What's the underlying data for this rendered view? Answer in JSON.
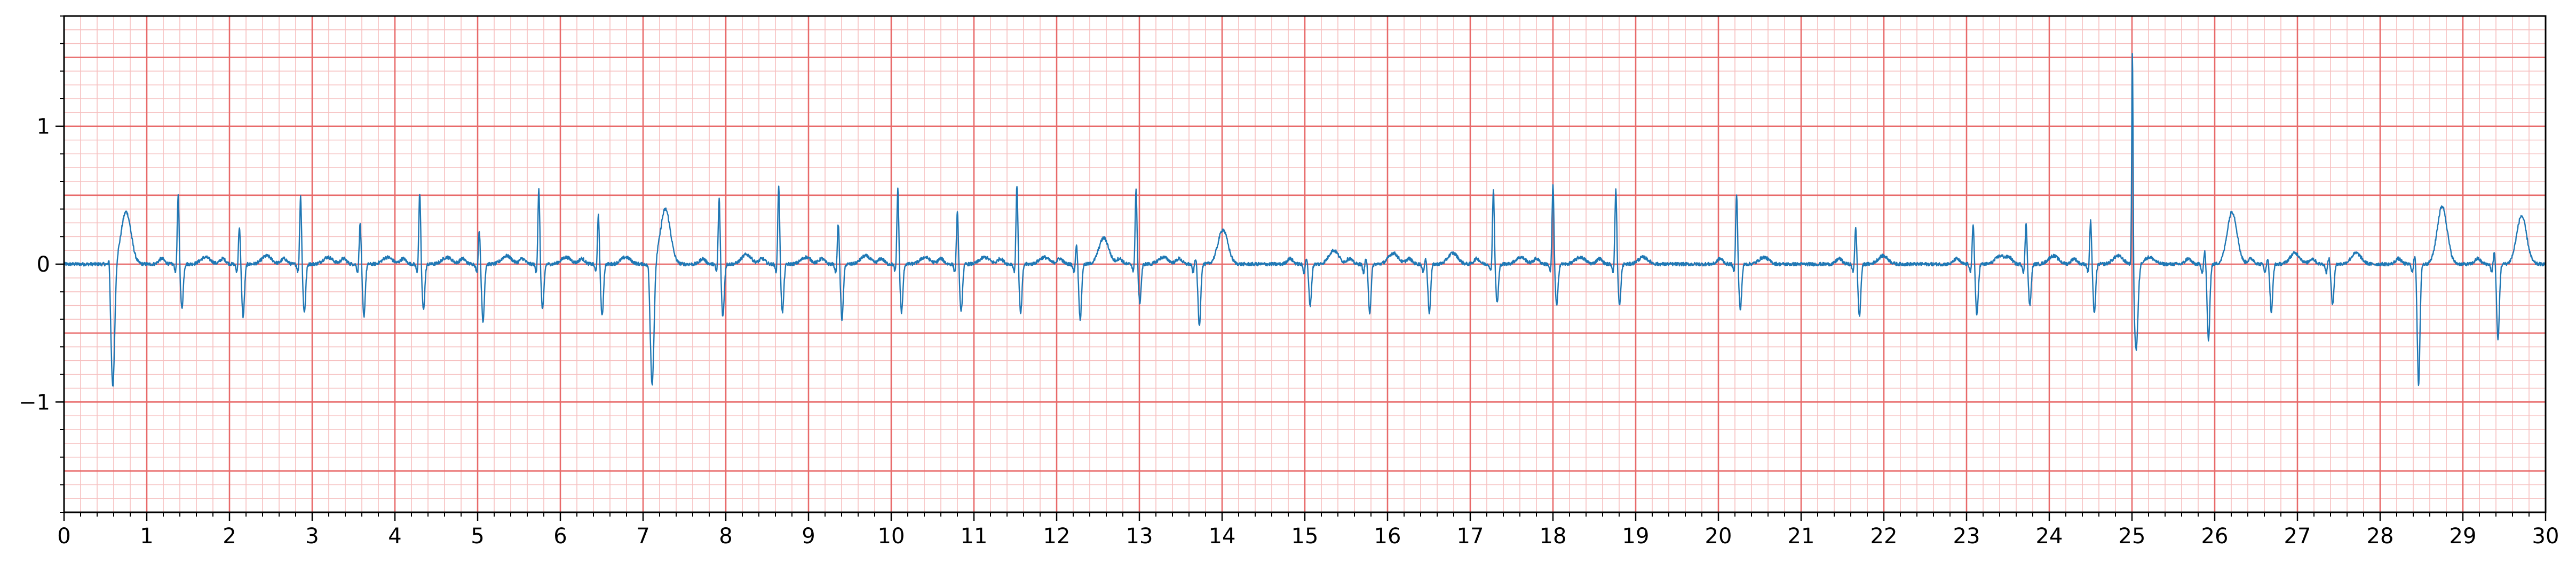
{
  "chart_data": {
    "type": "line",
    "title": "",
    "xlabel": "",
    "ylabel": "",
    "xlim": [
      0,
      30
    ],
    "ylim": [
      -1.8,
      1.8
    ],
    "grid": {
      "major_step_x": 1,
      "minor_step_x": 0.2,
      "major_step_y": 0.5,
      "minor_step_y": 0.1,
      "major_color": "#e86a6a",
      "minor_color": "#f6c0c0"
    },
    "x_ticks": [
      0,
      1,
      2,
      3,
      4,
      5,
      6,
      7,
      8,
      9,
      10,
      11,
      12,
      13,
      14,
      15,
      16,
      17,
      18,
      19,
      20,
      21,
      22,
      23,
      24,
      25,
      26,
      27,
      28,
      29,
      30
    ],
    "x_tick_labels": [
      "0",
      "1",
      "2",
      "3",
      "4",
      "5",
      "6",
      "7",
      "8",
      "9",
      "10",
      "11",
      "12",
      "13",
      "14",
      "15",
      "16",
      "17",
      "18",
      "19",
      "20",
      "21",
      "22",
      "23",
      "24",
      "25",
      "26",
      "27",
      "28",
      "29",
      "30"
    ],
    "y_ticks": [
      -1,
      0,
      1
    ],
    "y_tick_labels": [
      "−1",
      "0",
      "1"
    ],
    "line_color": "#1f77b4",
    "series": [
      {
        "beats": [
          {
            "t": 0.56,
            "kind": "ectopic",
            "amp": 0.12,
            "depth": -0.9,
            "p": 0.05,
            "tw": 0.38
          },
          {
            "t": 1.38,
            "kind": "sinus",
            "amp": 0.5,
            "depth": -0.32,
            "p": 0.04,
            "tw": 0.05
          },
          {
            "t": 2.12,
            "kind": "sinus",
            "amp": 0.28,
            "depth": -0.38,
            "p": 0.04,
            "tw": 0.06
          },
          {
            "t": 2.86,
            "kind": "sinus",
            "amp": 0.5,
            "depth": -0.35,
            "p": 0.04,
            "tw": 0.05
          },
          {
            "t": 3.58,
            "kind": "sinus",
            "amp": 0.3,
            "depth": -0.38,
            "p": 0.04,
            "tw": 0.05
          },
          {
            "t": 4.3,
            "kind": "sinus",
            "amp": 0.52,
            "depth": -0.33,
            "p": 0.04,
            "tw": 0.05
          },
          {
            "t": 5.02,
            "kind": "sinus",
            "amp": 0.25,
            "depth": -0.42,
            "p": 0.04,
            "tw": 0.06
          },
          {
            "t": 5.74,
            "kind": "sinus",
            "amp": 0.55,
            "depth": -0.33,
            "p": 0.04,
            "tw": 0.05
          },
          {
            "t": 6.46,
            "kind": "sinus",
            "amp": 0.36,
            "depth": -0.38,
            "p": 0.04,
            "tw": 0.05
          },
          {
            "t": 7.08,
            "kind": "ectopic",
            "amp": 0.05,
            "depth": -0.88,
            "p": 0.04,
            "tw": 0.4
          },
          {
            "t": 7.92,
            "kind": "sinus",
            "amp": 0.48,
            "depth": -0.38,
            "p": 0.04,
            "tw": 0.07
          },
          {
            "t": 8.64,
            "kind": "sinus",
            "amp": 0.58,
            "depth": -0.35,
            "p": 0.04,
            "tw": 0.05
          },
          {
            "t": 9.36,
            "kind": "sinus",
            "amp": 0.3,
            "depth": -0.4,
            "p": 0.04,
            "tw": 0.06
          },
          {
            "t": 10.08,
            "kind": "sinus",
            "amp": 0.55,
            "depth": -0.35,
            "p": 0.04,
            "tw": 0.05
          },
          {
            "t": 10.8,
            "kind": "sinus",
            "amp": 0.38,
            "depth": -0.35,
            "p": 0.04,
            "tw": 0.05
          },
          {
            "t": 11.52,
            "kind": "sinus",
            "amp": 0.58,
            "depth": -0.36,
            "p": 0.04,
            "tw": 0.05
          },
          {
            "t": 12.24,
            "kind": "sinus",
            "amp": 0.15,
            "depth": -0.4,
            "p": 0.04,
            "tw": 0.19
          },
          {
            "t": 12.96,
            "kind": "sinus",
            "amp": 0.55,
            "depth": -0.28,
            "p": 0.04,
            "tw": 0.05
          },
          {
            "t": 13.68,
            "kind": "sinus",
            "amp": 0.05,
            "depth": -0.45,
            "p": 0.04,
            "tw": 0.25
          },
          {
            "t": 15.02,
            "kind": "sinus",
            "amp": 0.05,
            "depth": -0.3,
            "p": 0.04,
            "tw": 0.1
          },
          {
            "t": 15.74,
            "kind": "sinus",
            "amp": 0.05,
            "depth": -0.35,
            "p": 0.04,
            "tw": 0.08
          },
          {
            "t": 16.46,
            "kind": "sinus",
            "amp": 0.05,
            "depth": -0.35,
            "p": 0.04,
            "tw": 0.08
          },
          {
            "t": 17.28,
            "kind": "sinus",
            "amp": 0.55,
            "depth": -0.28,
            "p": 0.04,
            "tw": 0.05
          },
          {
            "t": 18.0,
            "kind": "sinus",
            "amp": 0.58,
            "depth": -0.3,
            "p": 0.04,
            "tw": 0.05
          },
          {
            "t": 18.76,
            "kind": "sinus",
            "amp": 0.55,
            "depth": -0.3,
            "p": 0.04,
            "tw": 0.05
          },
          {
            "t": 20.22,
            "kind": "sinus",
            "amp": 0.52,
            "depth": -0.33,
            "p": 0.04,
            "tw": 0.05
          },
          {
            "t": 21.66,
            "kind": "sinus",
            "amp": 0.28,
            "depth": -0.38,
            "p": 0.04,
            "tw": 0.06
          },
          {
            "t": 23.08,
            "kind": "sinus",
            "amp": 0.3,
            "depth": -0.37,
            "p": 0.04,
            "tw": 0.06
          },
          {
            "t": 23.72,
            "kind": "sinus",
            "amp": 0.3,
            "depth": -0.3,
            "p": 0.04,
            "tw": 0.06
          },
          {
            "t": 24.5,
            "kind": "sinus",
            "amp": 0.32,
            "depth": -0.35,
            "p": 0.04,
            "tw": 0.06
          },
          {
            "t": 25.02,
            "kind": "ectopic",
            "amp": 1.62,
            "depth": -0.62,
            "p": 0.04,
            "tw": 0.05
          },
          {
            "t": 25.88,
            "kind": "sinus",
            "amp": 0.1,
            "depth": -0.55,
            "p": 0.04,
            "tw": 0.38
          },
          {
            "t": 26.64,
            "kind": "sinus",
            "amp": 0.05,
            "depth": -0.35,
            "p": 0.04,
            "tw": 0.08
          },
          {
            "t": 27.38,
            "kind": "sinus",
            "amp": 0.05,
            "depth": -0.3,
            "p": 0.04,
            "tw": 0.08
          },
          {
            "t": 28.42,
            "kind": "sinus",
            "amp": 0.08,
            "depth": -0.88,
            "p": 0.04,
            "tw": 0.42
          },
          {
            "t": 29.38,
            "kind": "sinus",
            "amp": 0.1,
            "depth": -0.55,
            "p": 0.04,
            "tw": 0.35
          }
        ]
      }
    ]
  }
}
